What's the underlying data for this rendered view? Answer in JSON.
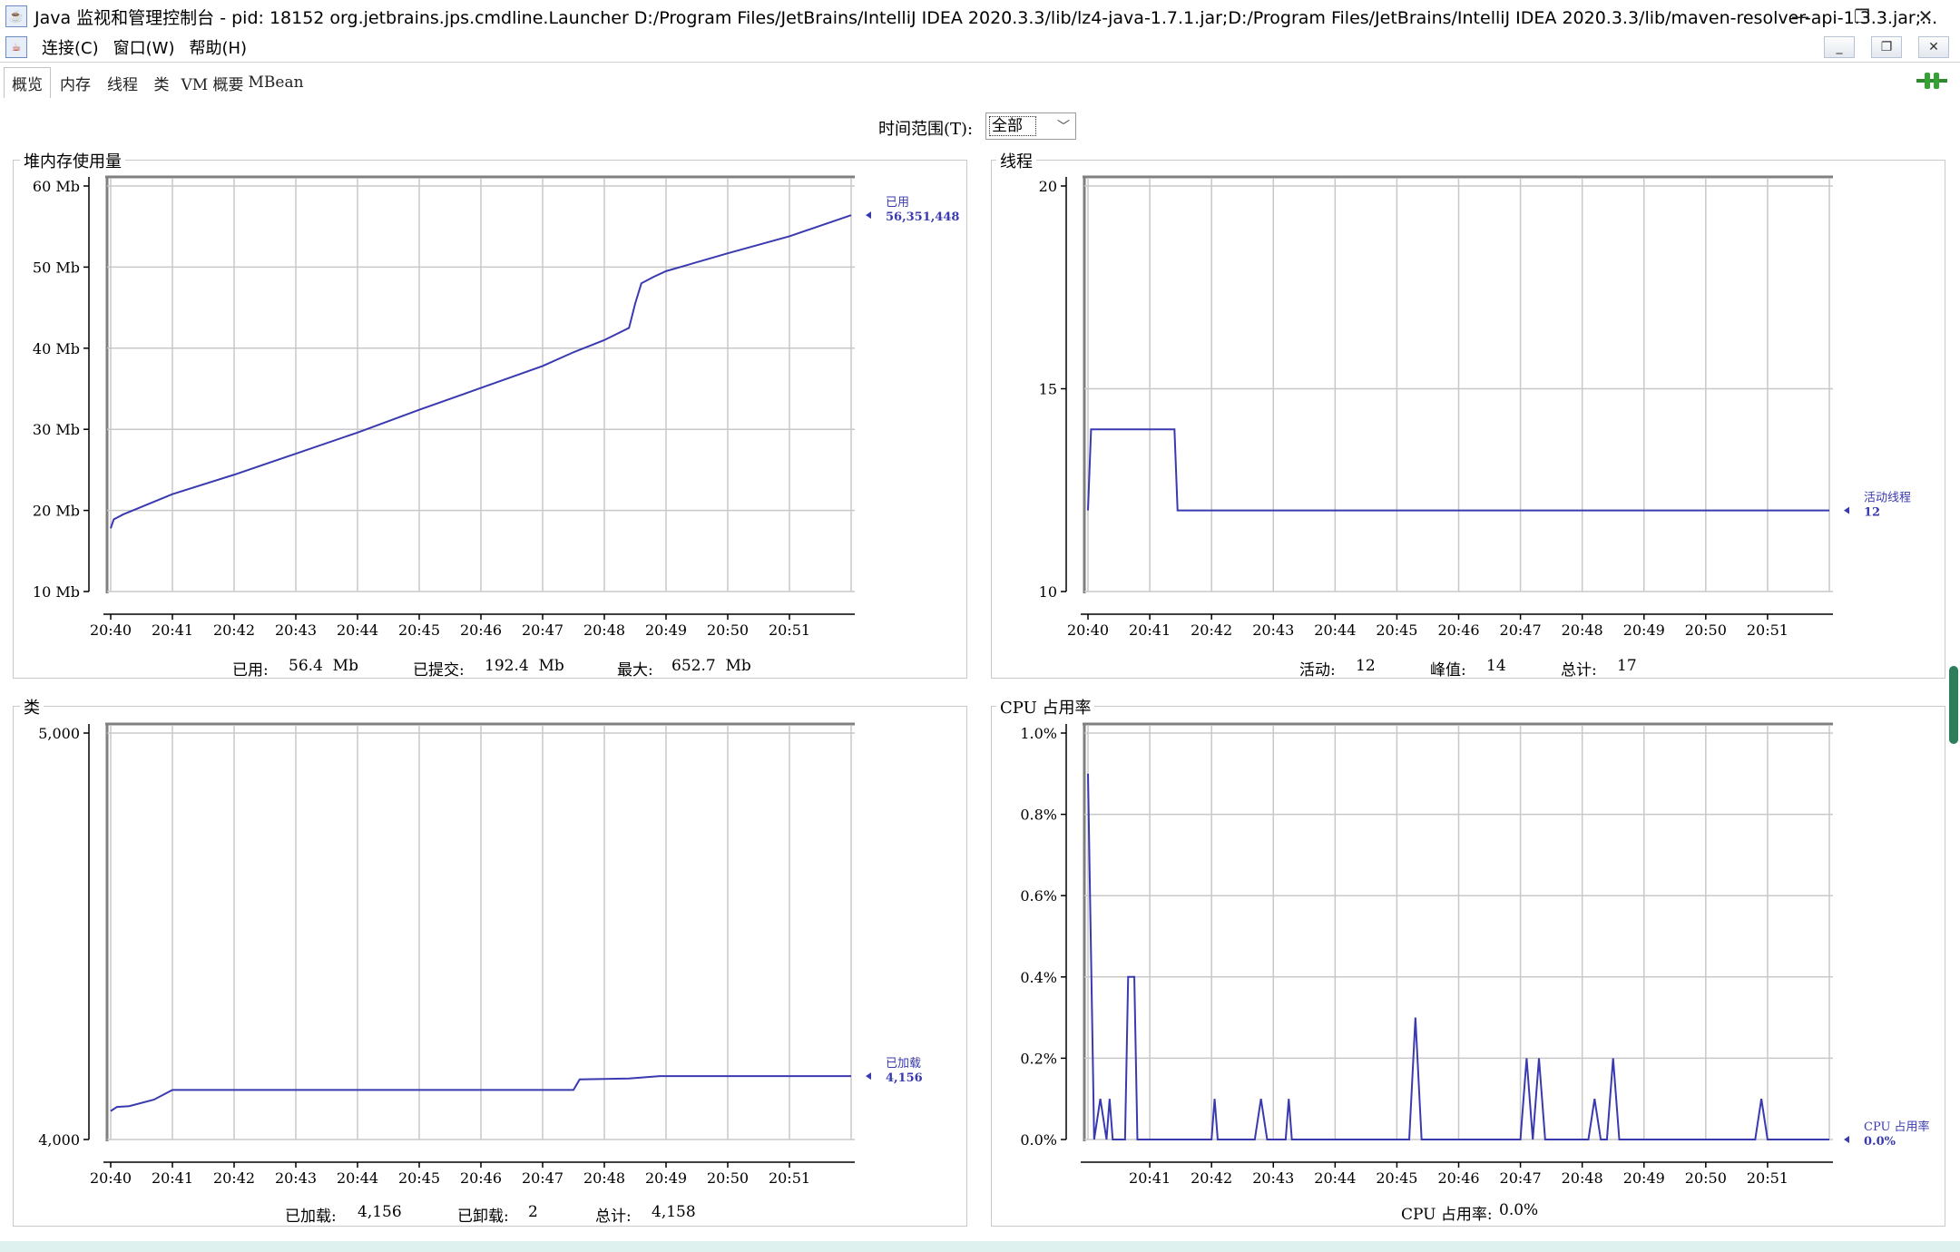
{
  "window": {
    "title": "Java 监视和管理控制台 - pid: 18152 org.jetbrains.jps.cmdline.Launcher D:/Program Files/JetBrains/IntelliJ IDEA 2020.3.3/lib/lz4-java-1.7.1.jar;D:/Program Files/JetBrains/IntelliJ IDEA 2020.3.3/lib/maven-resolver-api-1.3.3.jar;...",
    "app_icon": "java-icon",
    "minimize_glyph": "—",
    "restore_glyph": "❐",
    "close_glyph": "✕"
  },
  "menubar": {
    "items": [
      "连接(C)",
      "窗口(W)",
      "帮助(H)"
    ],
    "inner_min": "_",
    "inner_restore": "❐",
    "inner_close": "✕"
  },
  "tabs": [
    "概览",
    "内存",
    "线程",
    "类",
    "VM 概要",
    "MBean"
  ],
  "active_tab": 0,
  "time_range": {
    "label": "时间范围(T):",
    "value": "全部"
  },
  "panels": {
    "heap": {
      "title": "堆内存使用量",
      "stats": [
        {
          "label": "已用:",
          "value": "56.4  Mb"
        },
        {
          "label": "已提交:",
          "value": "192.4  Mb"
        },
        {
          "label": "最大:",
          "value": "652.7  Mb"
        }
      ]
    },
    "threads": {
      "title": "线程",
      "stats": [
        {
          "label": "活动:",
          "value": "12"
        },
        {
          "label": "峰值:",
          "value": "14"
        },
        {
          "label": "总计:",
          "value": "17"
        }
      ]
    },
    "classes": {
      "title": "类",
      "stats": [
        {
          "label": "已加载:",
          "value": "4,156"
        },
        {
          "label": "已卸载:",
          "value": "2"
        },
        {
          "label": "总计:",
          "value": "4,158"
        }
      ]
    },
    "cpu": {
      "title": "CPU 占用率",
      "stats": [
        {
          "label": "CPU 占用率:",
          "value": "0.0%"
        }
      ]
    }
  },
  "colors": {
    "series": "#3a3ab0",
    "grid": "#c8c8c8",
    "frame": "#808080"
  },
  "chart_data": [
    {
      "type": "line",
      "id": "heap",
      "title": "堆内存使用量",
      "unit": "Mb",
      "x_ticks": [
        "20:40",
        "20:41",
        "20:42",
        "20:43",
        "20:44",
        "20:45",
        "20:46",
        "20:47",
        "20:48",
        "20:49",
        "20:50",
        "20:51"
      ],
      "y_ticks": [
        "10 Mb",
        "20 Mb",
        "30 Mb",
        "40 Mb",
        "50 Mb",
        "60 Mb"
      ],
      "ylim": [
        10,
        60
      ],
      "xlim": [
        20.0,
        32.0
      ],
      "series": [
        {
          "name": "已用",
          "value_label": "56,351,448",
          "x": [
            20.0,
            20.05,
            20.2,
            21.0,
            22.0,
            23.0,
            24.0,
            25.0,
            26.0,
            27.0,
            27.5,
            28.0,
            28.4,
            28.5,
            28.6,
            28.8,
            29.0,
            30.0,
            31.0,
            32.0
          ],
          "y": [
            17.8,
            18.9,
            19.5,
            22.0,
            24.4,
            27.0,
            29.6,
            32.4,
            35.1,
            37.8,
            39.5,
            41.0,
            42.5,
            45.5,
            48.0,
            48.8,
            49.5,
            51.7,
            53.8,
            56.4
          ]
        }
      ]
    },
    {
      "type": "line",
      "id": "threads",
      "title": "线程",
      "x_ticks": [
        "20:40",
        "20:41",
        "20:42",
        "20:43",
        "20:44",
        "20:45",
        "20:46",
        "20:47",
        "20:48",
        "20:49",
        "20:50",
        "20:51"
      ],
      "y_ticks": [
        "10",
        "15",
        "20"
      ],
      "ylim": [
        10,
        20
      ],
      "xlim": [
        20.0,
        32.0
      ],
      "series": [
        {
          "name": "活动线程",
          "value_label": "12",
          "x": [
            20.0,
            20.05,
            21.4,
            21.45,
            32.0
          ],
          "y": [
            12,
            14,
            14,
            12,
            12
          ]
        }
      ]
    },
    {
      "type": "line",
      "id": "classes",
      "title": "类",
      "x_ticks": [
        "20:40",
        "20:41",
        "20:42",
        "20:43",
        "20:44",
        "20:45",
        "20:46",
        "20:47",
        "20:48",
        "20:49",
        "20:50",
        "20:51"
      ],
      "y_ticks": [
        "4,000",
        "5,000"
      ],
      "ylim": [
        4000,
        5000
      ],
      "xlim": [
        20.0,
        32.0
      ],
      "series": [
        {
          "name": "已加载",
          "value_label": "4,156",
          "x": [
            20.0,
            20.1,
            20.3,
            20.7,
            21.0,
            27.5,
            27.6,
            28.4,
            28.9,
            32.0
          ],
          "y": [
            4070,
            4080,
            4082,
            4098,
            4122,
            4122,
            4148,
            4150,
            4156,
            4156
          ]
        }
      ]
    },
    {
      "type": "line",
      "id": "cpu",
      "title": "CPU 占用率",
      "x_ticks": [
        "20:41",
        "20:42",
        "20:43",
        "20:44",
        "20:45",
        "20:46",
        "20:47",
        "20:48",
        "20:49",
        "20:50",
        "20:51"
      ],
      "y_ticks": [
        "0.0%",
        "0.2%",
        "0.4%",
        "0.6%",
        "0.8%",
        "1.0%"
      ],
      "ylim": [
        0.0,
        1.0
      ],
      "xlim": [
        20.0,
        32.0
      ],
      "series": [
        {
          "name": "CPU 占用率",
          "value_label": "0.0%",
          "x": [
            20.0,
            20.1,
            20.2,
            20.3,
            20.35,
            20.4,
            20.6,
            20.65,
            20.7,
            20.75,
            20.8,
            20.95,
            21.0,
            22.0,
            22.05,
            22.1,
            22.7,
            22.8,
            22.9,
            23.2,
            23.25,
            23.3,
            25.2,
            25.3,
            25.4,
            27.0,
            27.1,
            27.2,
            27.3,
            27.4,
            28.1,
            28.2,
            28.3,
            28.4,
            28.5,
            28.6,
            30.8,
            30.9,
            31.0,
            32.0
          ],
          "y": [
            0.9,
            0.0,
            0.1,
            0.0,
            0.1,
            0.0,
            0.0,
            0.4,
            0.4,
            0.4,
            0.0,
            0.0,
            0.0,
            0.0,
            0.1,
            0.0,
            0.0,
            0.1,
            0.0,
            0.0,
            0.1,
            0.0,
            0.0,
            0.3,
            0.0,
            0.0,
            0.2,
            0.0,
            0.2,
            0.0,
            0.0,
            0.1,
            0.0,
            0.0,
            0.2,
            0.0,
            0.0,
            0.1,
            0.0,
            0.0
          ]
        }
      ]
    }
  ]
}
